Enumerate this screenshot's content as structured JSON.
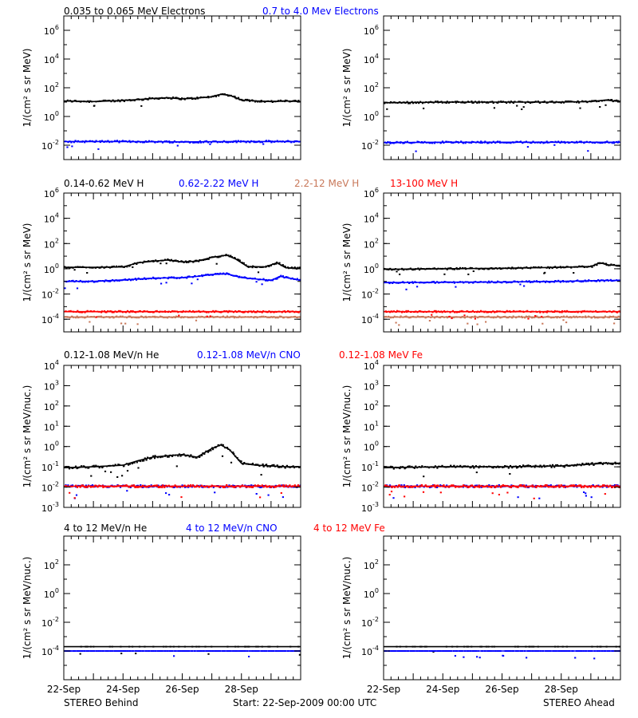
{
  "footer": {
    "left": "STEREO Behind",
    "center": "Start: 22-Sep-2009 00:00 UTC",
    "right": "STEREO Ahead"
  },
  "x_tick_labels": [
    "22-Sep",
    "24-Sep",
    "26-Sep",
    "28-Sep"
  ],
  "colors": {
    "black": "#000000",
    "blue": "#0000ff",
    "brown": "#c8785a",
    "red": "#ff0000",
    "axis": "#000000"
  },
  "chart_data": [
    {
      "type": "scatter",
      "row": 1,
      "side": "behind",
      "ylabel": "1/(cm² s sr MeV)",
      "yscale": "log",
      "ylim": [
        0.001,
        10000000
      ],
      "y_tick_labels": [
        {
          "base": "10",
          "exp": "6",
          "value": 1000000
        },
        {
          "base": "10",
          "exp": "4",
          "value": 10000
        },
        {
          "base": "10",
          "exp": "2",
          "value": 100
        },
        {
          "base": "10",
          "exp": "0",
          "value": 1
        },
        {
          "base": "10",
          "exp": "-2",
          "value": 0.01
        }
      ],
      "series": [
        {
          "name": "0.035 to 0.065 MeV Electrons",
          "color": "#000000",
          "x": [
            22,
            23,
            24,
            24.5,
            25,
            25.5,
            26,
            26.5,
            27,
            27.3,
            27.6,
            28,
            28.5,
            29,
            29.5,
            30
          ],
          "y": [
            12,
            11,
            13,
            15,
            18,
            20,
            17,
            19,
            24,
            35,
            30,
            14,
            12,
            11,
            12,
            11
          ]
        },
        {
          "name": "0.7 to 4.0 Mev Electrons",
          "color": "#0000ff",
          "x": [
            22,
            24,
            26,
            28,
            30
          ],
          "y": [
            0.018,
            0.018,
            0.017,
            0.018,
            0.018
          ]
        }
      ]
    },
    {
      "type": "scatter",
      "row": 1,
      "side": "ahead",
      "ylabel": "1/(cm² s sr MeV)",
      "yscale": "log",
      "ylim": [
        0.001,
        10000000
      ],
      "y_tick_labels": [
        {
          "base": "10",
          "exp": "6",
          "value": 1000000
        },
        {
          "base": "10",
          "exp": "4",
          "value": 10000
        },
        {
          "base": "10",
          "exp": "2",
          "value": 100
        },
        {
          "base": "10",
          "exp": "0",
          "value": 1
        },
        {
          "base": "10",
          "exp": "-2",
          "value": 0.01
        }
      ],
      "series": [
        {
          "name": "0.035 to 0.065 MeV Electrons",
          "color": "#000000",
          "x": [
            22,
            24,
            26,
            28,
            29,
            29.5,
            30
          ],
          "y": [
            9,
            10,
            10,
            10,
            11,
            14,
            11
          ]
        },
        {
          "name": "0.7 to 4.0 Mev Electrons",
          "color": "#0000ff",
          "x": [
            22,
            24,
            26,
            28,
            30
          ],
          "y": [
            0.015,
            0.016,
            0.016,
            0.016,
            0.016
          ]
        }
      ]
    },
    {
      "type": "scatter",
      "row": 2,
      "side": "behind",
      "ylabel": "1/(cm² s sr MeV)",
      "yscale": "log",
      "ylim": [
        1e-05,
        1000000
      ],
      "y_tick_labels": [
        {
          "base": "10",
          "exp": "6",
          "value": 1000000
        },
        {
          "base": "10",
          "exp": "4",
          "value": 10000
        },
        {
          "base": "10",
          "exp": "2",
          "value": 100
        },
        {
          "base": "10",
          "exp": "0",
          "value": 1
        },
        {
          "base": "10",
          "exp": "-2",
          "value": 0.01
        },
        {
          "base": "10",
          "exp": "-4",
          "value": 0.0001
        }
      ],
      "series": [
        {
          "name": "0.14-0.62 MeV H",
          "color": "#000000",
          "x": [
            22,
            23,
            24,
            24.5,
            25,
            25.5,
            26,
            26.5,
            27,
            27.5,
            27.8,
            28.2,
            28.8,
            29.2,
            29.5,
            30
          ],
          "y": [
            1.3,
            1.3,
            1.4,
            3,
            4,
            5,
            3.5,
            4,
            8,
            12,
            6,
            1.5,
            1.4,
            3,
            1.2,
            1.1
          ]
        },
        {
          "name": "0.62-2.22 MeV H",
          "color": "#0000ff",
          "x": [
            22,
            23,
            24,
            25,
            26,
            26.5,
            27,
            27.5,
            28,
            29,
            29.3,
            30
          ],
          "y": [
            0.1,
            0.1,
            0.13,
            0.18,
            0.2,
            0.25,
            0.35,
            0.4,
            0.2,
            0.12,
            0.25,
            0.12
          ]
        },
        {
          "name": "2.2-12 MeV H",
          "color": "#c8785a",
          "x": [
            22,
            30
          ],
          "y": [
            0.00015,
            0.00015
          ]
        },
        {
          "name": "13-100 MeV H",
          "color": "#ff0000",
          "x": [
            22,
            30
          ],
          "y": [
            0.0004,
            0.0004
          ]
        }
      ]
    },
    {
      "type": "scatter",
      "row": 2,
      "side": "ahead",
      "ylabel": "1/(cm² s sr MeV)",
      "yscale": "log",
      "ylim": [
        1e-05,
        1000000
      ],
      "y_tick_labels": [
        {
          "base": "10",
          "exp": "6",
          "value": 1000000
        },
        {
          "base": "10",
          "exp": "4",
          "value": 10000
        },
        {
          "base": "10",
          "exp": "2",
          "value": 100
        },
        {
          "base": "10",
          "exp": "0",
          "value": 1
        },
        {
          "base": "10",
          "exp": "-2",
          "value": 0.01
        },
        {
          "base": "10",
          "exp": "-4",
          "value": 0.0001
        }
      ],
      "series": [
        {
          "name": "0.14-0.62 MeV H",
          "color": "#000000",
          "x": [
            22,
            24,
            26,
            28,
            29,
            29.3,
            29.6,
            30
          ],
          "y": [
            0.9,
            1.0,
            1.1,
            1.3,
            1.5,
            3,
            2,
            1.8
          ]
        },
        {
          "name": "0.62-2.22 MeV H",
          "color": "#0000ff",
          "x": [
            22,
            24,
            26,
            28,
            29.5,
            30
          ],
          "y": [
            0.08,
            0.085,
            0.09,
            0.1,
            0.12,
            0.12
          ]
        },
        {
          "name": "2.2-12 MeV H",
          "color": "#c8785a",
          "x": [
            22,
            30
          ],
          "y": [
            0.00015,
            0.00015
          ]
        },
        {
          "name": "13-100 MeV H",
          "color": "#ff0000",
          "x": [
            22,
            30
          ],
          "y": [
            0.0004,
            0.0004
          ]
        }
      ]
    },
    {
      "type": "scatter",
      "row": 3,
      "side": "behind",
      "ylabel": "1/(cm² s sr MeV/nuc.)",
      "yscale": "log",
      "ylim": [
        0.001,
        10000
      ],
      "y_tick_labels": [
        {
          "base": "10",
          "exp": "4",
          "value": 10000
        },
        {
          "base": "10",
          "exp": "3",
          "value": 1000
        },
        {
          "base": "10",
          "exp": "2",
          "value": 100
        },
        {
          "base": "10",
          "exp": "1",
          "value": 10
        },
        {
          "base": "10",
          "exp": "0",
          "value": 1
        },
        {
          "base": "10",
          "exp": "-1",
          "value": 0.1
        },
        {
          "base": "10",
          "exp": "-2",
          "value": 0.01
        },
        {
          "base": "10",
          "exp": "-3",
          "value": 0.001
        }
      ],
      "series": [
        {
          "name": "0.12-1.08 MeV/n He",
          "color": "#000000",
          "x": [
            22,
            23,
            24,
            24.5,
            25,
            25.5,
            26,
            26.5,
            27,
            27.3,
            27.6,
            28,
            28.5,
            29,
            29.5,
            30
          ],
          "y": [
            0.09,
            0.1,
            0.12,
            0.2,
            0.3,
            0.35,
            0.4,
            0.3,
            0.8,
            1.2,
            0.7,
            0.15,
            0.12,
            0.11,
            0.1,
            0.1
          ]
        },
        {
          "name": "0.12-1.08 MeV/n CNO",
          "color": "#0000ff",
          "x": [
            22,
            30
          ],
          "y": [
            0.011,
            0.011
          ]
        },
        {
          "name": "0.12-1.08 MeV Fe",
          "color": "#ff0000",
          "x": [
            22,
            30
          ],
          "y": [
            0.011,
            0.011
          ]
        }
      ]
    },
    {
      "type": "scatter",
      "row": 3,
      "side": "ahead",
      "ylabel": "1/(cm² s sr MeV/nuc.)",
      "yscale": "log",
      "ylim": [
        0.001,
        10000
      ],
      "y_tick_labels": [
        {
          "base": "10",
          "exp": "4",
          "value": 10000
        },
        {
          "base": "10",
          "exp": "3",
          "value": 1000
        },
        {
          "base": "10",
          "exp": "2",
          "value": 100
        },
        {
          "base": "10",
          "exp": "1",
          "value": 10
        },
        {
          "base": "10",
          "exp": "0",
          "value": 1
        },
        {
          "base": "10",
          "exp": "-1",
          "value": 0.1
        },
        {
          "base": "10",
          "exp": "-2",
          "value": 0.01
        },
        {
          "base": "10",
          "exp": "-3",
          "value": 0.001
        }
      ],
      "series": [
        {
          "name": "0.12-1.08 MeV/n He",
          "color": "#000000",
          "x": [
            22,
            24,
            26,
            28,
            29.5,
            30
          ],
          "y": [
            0.09,
            0.1,
            0.1,
            0.11,
            0.15,
            0.15
          ]
        },
        {
          "name": "0.12-1.08 MeV/n CNO",
          "color": "#0000ff",
          "x": [
            22,
            30
          ],
          "y": [
            0.011,
            0.011
          ]
        },
        {
          "name": "0.12-1.08 MeV Fe",
          "color": "#ff0000",
          "x": [
            22,
            30
          ],
          "y": [
            0.011,
            0.011
          ]
        }
      ]
    },
    {
      "type": "scatter",
      "row": 4,
      "side": "behind",
      "ylabel": "1/(cm² s sr MeV/nuc.)",
      "yscale": "log",
      "ylim": [
        1e-06,
        10000
      ],
      "y_tick_labels": [
        {
          "base": "10",
          "exp": "2",
          "value": 100
        },
        {
          "base": "10",
          "exp": "0",
          "value": 1
        },
        {
          "base": "10",
          "exp": "-2",
          "value": 0.01
        },
        {
          "base": "10",
          "exp": "-4",
          "value": 0.0001
        }
      ],
      "series": [
        {
          "name": "4 to 12 MeV/n He",
          "color": "#000000",
          "x": [
            22,
            24,
            26,
            28,
            30
          ],
          "y": [
            0.0002,
            0.0002,
            0.0002,
            0.0002,
            0.0002
          ]
        },
        {
          "name": "4 to 12 MeV/n CNO",
          "color": "#0000ff",
          "x": [
            22,
            30
          ],
          "y": [
            0.0001,
            0.0001
          ]
        },
        {
          "name": "4 to 12 MeV Fe",
          "color": "#ff0000",
          "x": [],
          "y": []
        }
      ]
    },
    {
      "type": "scatter",
      "row": 4,
      "side": "ahead",
      "ylabel": "1/(cm² s sr MeV/nuc.)",
      "yscale": "log",
      "ylim": [
        1e-06,
        10000
      ],
      "y_tick_labels": [
        {
          "base": "10",
          "exp": "2",
          "value": 100
        },
        {
          "base": "10",
          "exp": "0",
          "value": 1
        },
        {
          "base": "10",
          "exp": "-2",
          "value": 0.01
        },
        {
          "base": "10",
          "exp": "-4",
          "value": 0.0001
        }
      ],
      "series": [
        {
          "name": "4 to 12 MeV/n He",
          "color": "#000000",
          "x": [
            22,
            24,
            26,
            28,
            30
          ],
          "y": [
            0.0002,
            0.0002,
            0.0002,
            0.0002,
            0.0002
          ]
        },
        {
          "name": "4 to 12 MeV/n CNO",
          "color": "#0000ff",
          "x": [
            22,
            30
          ],
          "y": [
            0.0001,
            0.0001
          ]
        },
        {
          "name": "4 to 12 MeV Fe",
          "color": "#ff0000",
          "x": [],
          "y": []
        }
      ]
    }
  ]
}
